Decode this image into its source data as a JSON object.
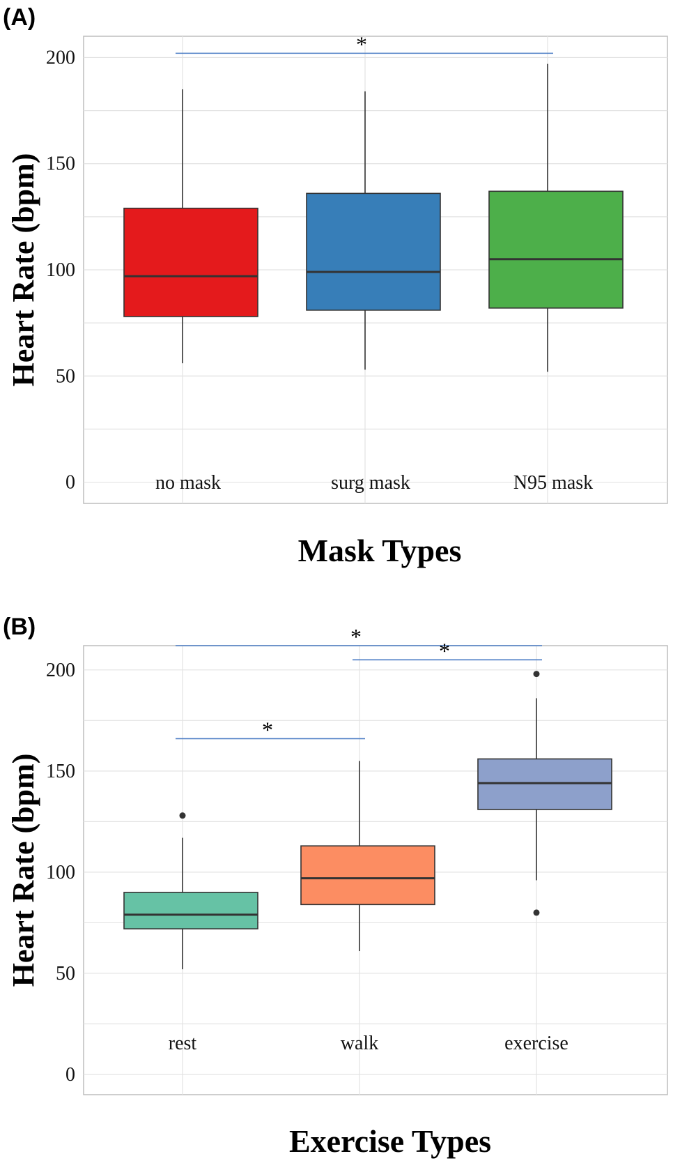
{
  "chart_data": [
    {
      "type": "box",
      "panel": "(A)",
      "xlabel": "Mask Types",
      "ylabel": "Heart Rate (bpm)",
      "ylim": [
        -10,
        210
      ],
      "yticks": [
        0,
        50,
        100,
        150,
        200
      ],
      "grid": true,
      "categories": [
        "no mask",
        "surg mask",
        "N95 mask"
      ],
      "boxes": [
        {
          "category": "no mask",
          "color": "#E41A1C",
          "whisker_low": 56,
          "q1": 78,
          "median": 97,
          "q3": 129,
          "whisker_high": 185,
          "outliers": []
        },
        {
          "category": "surg mask",
          "color": "#377EB8",
          "whisker_low": 53,
          "q1": 81,
          "median": 99,
          "q3": 136,
          "whisker_high": 184,
          "outliers": []
        },
        {
          "category": "N95 mask",
          "color": "#4DAF4A",
          "whisker_low": 52,
          "q1": 82,
          "median": 105,
          "q3": 137,
          "whisker_high": 197,
          "outliers": []
        }
      ],
      "significance": [
        {
          "from": "no mask",
          "to": "N95 mask",
          "y": 202,
          "label": "*"
        }
      ]
    },
    {
      "type": "box",
      "panel": "(B)",
      "xlabel": "Exercise Types",
      "ylabel": "Heart Rate (bpm)",
      "ylim": [
        -10,
        212
      ],
      "yticks": [
        0,
        50,
        100,
        150,
        200
      ],
      "grid": true,
      "categories": [
        "rest",
        "walk",
        "exercise"
      ],
      "boxes": [
        {
          "category": "rest",
          "color": "#66C2A5",
          "whisker_low": 52,
          "q1": 72,
          "median": 79,
          "q3": 90,
          "whisker_high": 117,
          "outliers": [
            128
          ]
        },
        {
          "category": "walk",
          "color": "#FC8D62",
          "whisker_low": 61,
          "q1": 84,
          "median": 97,
          "q3": 113,
          "whisker_high": 155,
          "outliers": []
        },
        {
          "category": "exercise",
          "color": "#8DA0CB",
          "whisker_low": 96,
          "q1": 131,
          "median": 144,
          "q3": 156,
          "whisker_high": 186,
          "outliers": [
            198,
            80
          ]
        }
      ],
      "significance": [
        {
          "from": "rest",
          "to": "exercise",
          "y": 212,
          "label": "*"
        },
        {
          "from": "walk",
          "to": "exercise",
          "y": 205,
          "label": "*"
        },
        {
          "from": "rest",
          "to": "walk",
          "y": 166,
          "label": "*"
        }
      ]
    }
  ]
}
